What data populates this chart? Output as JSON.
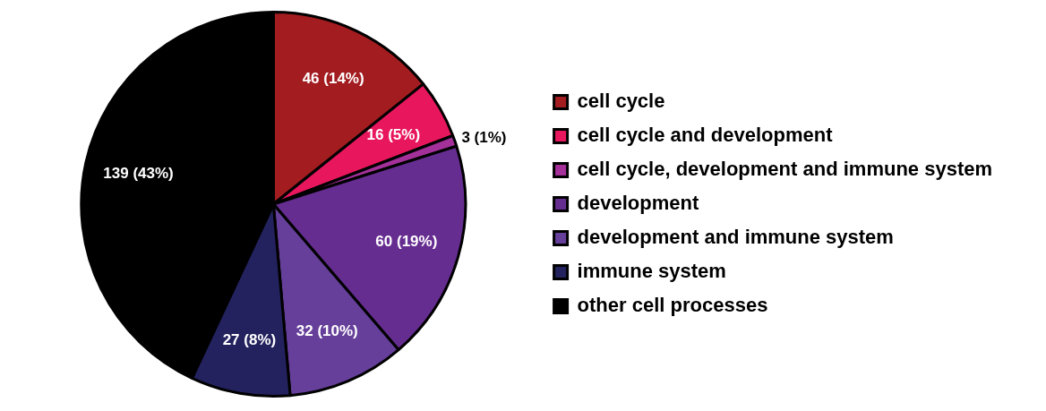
{
  "chart_data": {
    "type": "pie",
    "categories": [
      "cell cycle",
      "cell cycle and development",
      "cell cycle, development and immune system",
      "development",
      "development and immune system",
      "immune system",
      "other cell processes"
    ],
    "values": [
      46,
      16,
      3,
      60,
      32,
      27,
      139
    ],
    "colors": [
      "#a31c20",
      "#e8175d",
      "#a4309a",
      "#662d91",
      "#653f99",
      "#23225e",
      "#000000"
    ],
    "value_labels": [
      "46 (14%)",
      "16 (5%)",
      "3 (1%)",
      "60 (19%)",
      "32 (10%)",
      "27 (8%)",
      "139 (43%)"
    ],
    "legend": "right"
  }
}
